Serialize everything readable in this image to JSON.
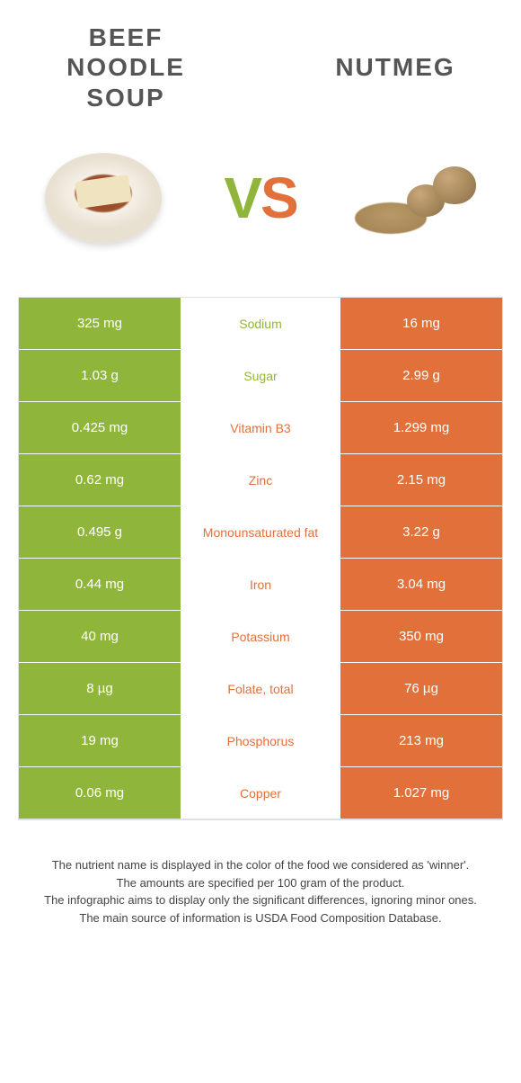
{
  "header": {
    "left_title": "Beef Noodle Soup",
    "right_title": "Nutmeg",
    "vs_v": "V",
    "vs_s": "S"
  },
  "colors": {
    "green": "#8fb63a",
    "orange": "#e2703a",
    "bg": "#ffffff",
    "border": "#e0e0e0",
    "text_footer": "#444444"
  },
  "rows": [
    {
      "left": "325 mg",
      "label": "Sodium",
      "right": "16 mg",
      "winner": "left"
    },
    {
      "left": "1.03 g",
      "label": "Sugar",
      "right": "2.99 g",
      "winner": "left"
    },
    {
      "left": "0.425 mg",
      "label": "Vitamin B3",
      "right": "1.299 mg",
      "winner": "right"
    },
    {
      "left": "0.62 mg",
      "label": "Zinc",
      "right": "2.15 mg",
      "winner": "right"
    },
    {
      "left": "0.495 g",
      "label": "Monounsaturated fat",
      "right": "3.22 g",
      "winner": "right"
    },
    {
      "left": "0.44 mg",
      "label": "Iron",
      "right": "3.04 mg",
      "winner": "right"
    },
    {
      "left": "40 mg",
      "label": "Potassium",
      "right": "350 mg",
      "winner": "right"
    },
    {
      "left": "8 µg",
      "label": "Folate, total",
      "right": "76 µg",
      "winner": "right"
    },
    {
      "left": "19 mg",
      "label": "Phosphorus",
      "right": "213 mg",
      "winner": "right"
    },
    {
      "left": "0.06 mg",
      "label": "Copper",
      "right": "1.027 mg",
      "winner": "right"
    }
  ],
  "footer": {
    "line1": "The nutrient name is displayed in the color of the food we considered as 'winner'.",
    "line2": "The amounts are specified per 100 gram of the product.",
    "line3": "The infographic aims to display only the significant differences, ignoring minor ones.",
    "line4": "The main source of information is USDA Food Composition Database."
  }
}
